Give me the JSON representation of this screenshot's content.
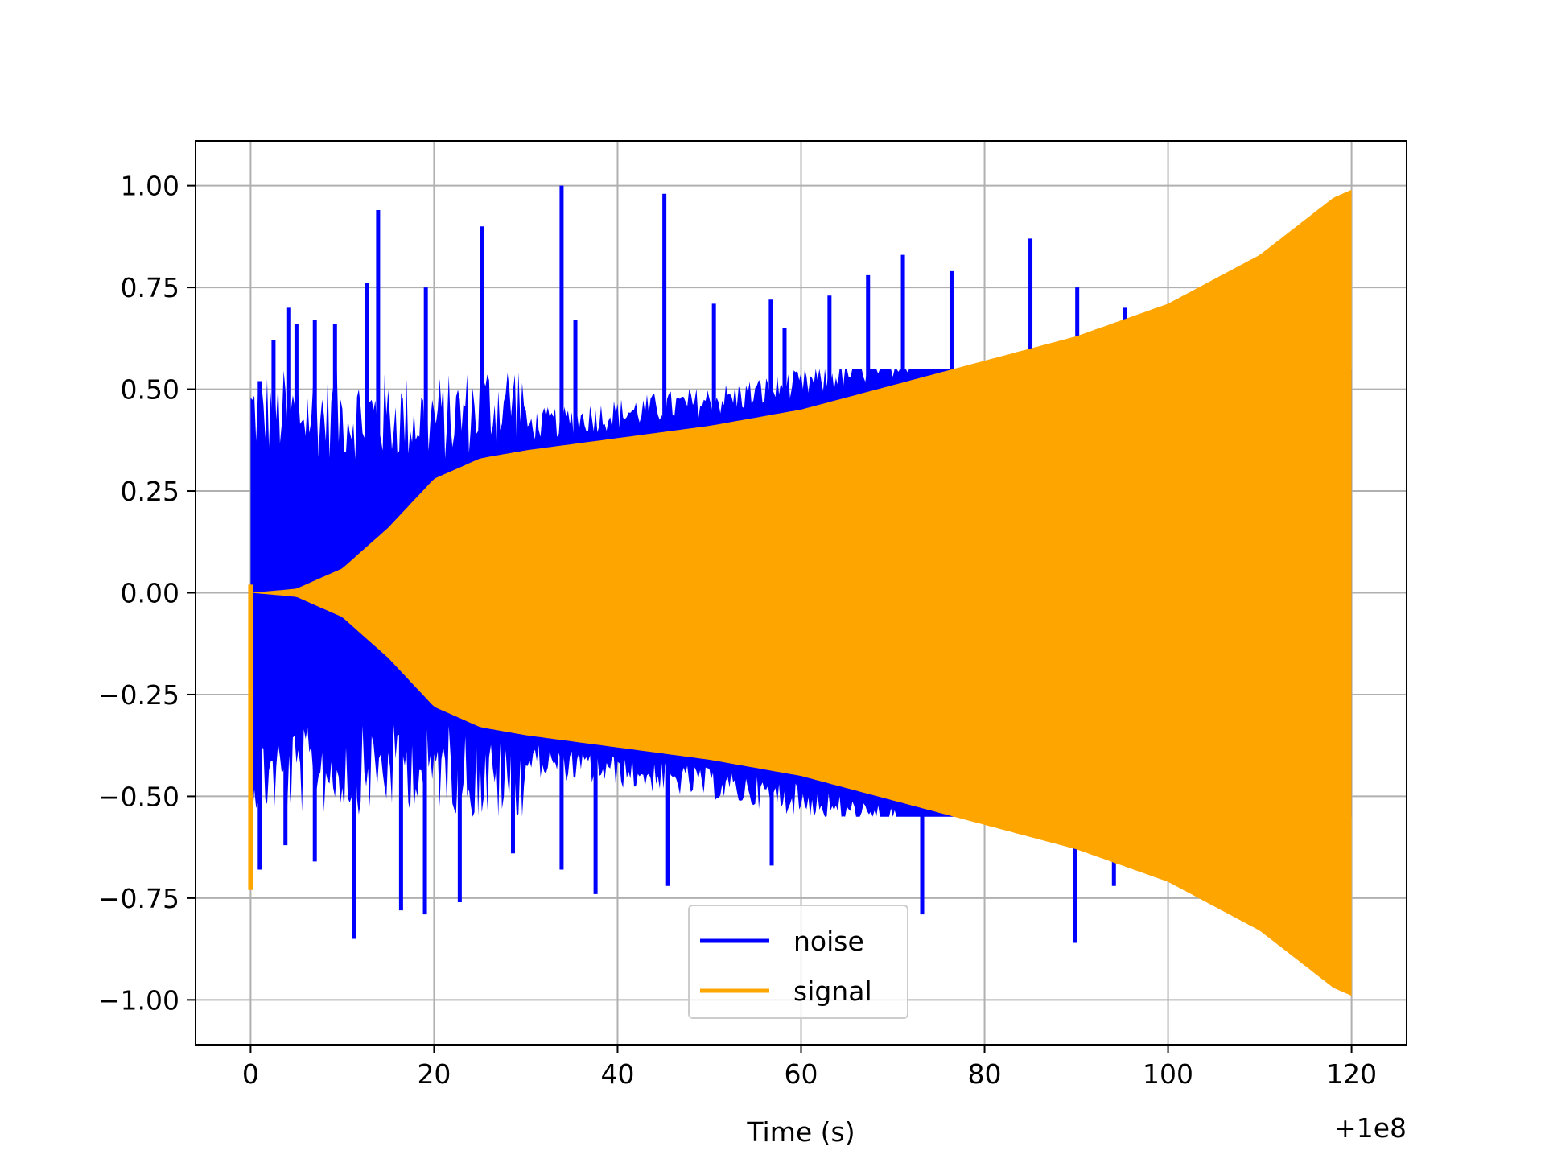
{
  "chart_data": {
    "type": "line",
    "xlabel": "Time (s)",
    "ylabel": "",
    "x_offset_label": "+1e8",
    "xlim": [
      -6,
      126
    ],
    "ylim": [
      -1.11,
      1.11
    ],
    "x_ticks": [
      0,
      20,
      40,
      60,
      80,
      100,
      120
    ],
    "x_tick_labels": [
      "0",
      "20",
      "40",
      "60",
      "80",
      "100",
      "120"
    ],
    "y_ticks": [
      1.0,
      0.75,
      0.5,
      0.25,
      0.0,
      -0.25,
      -0.5,
      -0.75,
      -1.0
    ],
    "y_tick_labels": [
      "1.00",
      "0.75",
      "0.50",
      "0.25",
      "0.00",
      "−0.25",
      "−0.50",
      "−0.75",
      "−1.00"
    ],
    "grid": true,
    "legend_position": "lower center",
    "series": [
      {
        "name": "noise",
        "color": "#0000ff",
        "x_range": [
          0,
          120
        ],
        "description_values": {
          "peak_max": 1.0,
          "peak_min": -0.85
        },
        "spikes_positive": [
          [
            1.0,
            0.52
          ],
          [
            2.5,
            0.62
          ],
          [
            4.2,
            0.7
          ],
          [
            5.0,
            0.66
          ],
          [
            7.0,
            0.67
          ],
          [
            9.2,
            0.66
          ],
          [
            12.7,
            0.76
          ],
          [
            13.9,
            0.94
          ],
          [
            19.1,
            0.75
          ],
          [
            25.2,
            0.9
          ],
          [
            33.9,
            1.0
          ],
          [
            35.4,
            0.67
          ],
          [
            45.1,
            0.98
          ],
          [
            50.5,
            0.71
          ],
          [
            56.7,
            0.72
          ],
          [
            58.2,
            0.65
          ],
          [
            63.1,
            0.73
          ],
          [
            67.3,
            0.78
          ],
          [
            71.1,
            0.83
          ],
          [
            76.4,
            0.79
          ],
          [
            85.0,
            0.87
          ],
          [
            90.1,
            0.75
          ],
          [
            95.3,
            0.7
          ]
        ],
        "spikes_negative": [
          [
            1.0,
            -0.68
          ],
          [
            3.8,
            -0.62
          ],
          [
            7.0,
            -0.66
          ],
          [
            11.3,
            -0.85
          ],
          [
            16.4,
            -0.78
          ],
          [
            19.0,
            -0.79
          ],
          [
            22.8,
            -0.76
          ],
          [
            28.6,
            -0.64
          ],
          [
            33.9,
            -0.68
          ],
          [
            37.6,
            -0.74
          ],
          [
            45.5,
            -0.72
          ],
          [
            56.8,
            -0.67
          ],
          [
            73.2,
            -0.79
          ],
          [
            89.9,
            -0.86
          ],
          [
            94.1,
            -0.72
          ]
        ]
      },
      {
        "name": "signal",
        "color": "#ffa500",
        "x_range": [
          0,
          120
        ],
        "envelope": [
          [
            0,
            0.0
          ],
          [
            5,
            0.01
          ],
          [
            10,
            0.06
          ],
          [
            15,
            0.16
          ],
          [
            20,
            0.28
          ],
          [
            25,
            0.33
          ],
          [
            30,
            0.35
          ],
          [
            40,
            0.38
          ],
          [
            50,
            0.41
          ],
          [
            60,
            0.45
          ],
          [
            70,
            0.51
          ],
          [
            80,
            0.57
          ],
          [
            90,
            0.63
          ],
          [
            100,
            0.71
          ],
          [
            110,
            0.83
          ],
          [
            118,
            0.97
          ],
          [
            120,
            0.99
          ]
        ],
        "initial_dip": -0.73
      }
    ]
  }
}
